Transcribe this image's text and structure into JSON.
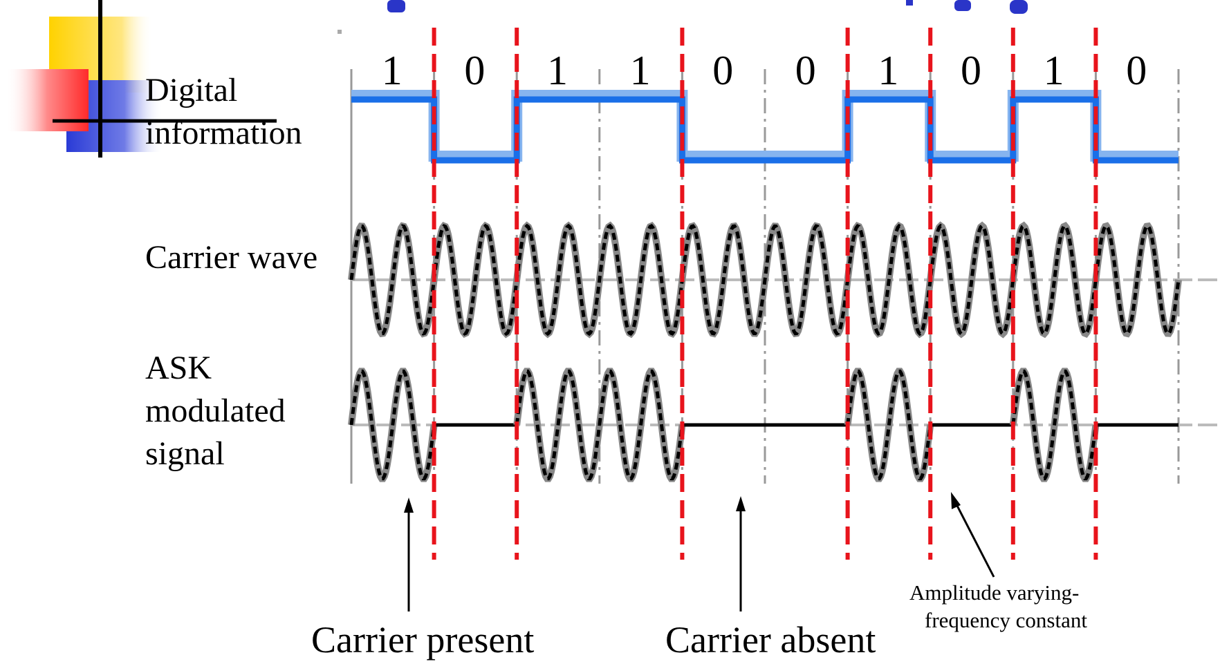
{
  "labels": {
    "digital": "Digital\ninformation",
    "carrier": "Carrier wave",
    "ask": "ASK\nmodulated\nsignal",
    "present": "Carrier present",
    "absent": "Carrier absent",
    "amplitude": "Amplitude varying-\nfrequency constant"
  },
  "bits": [
    "1",
    "0",
    "1",
    "1",
    "0",
    "0",
    "1",
    "0",
    "1",
    "0"
  ],
  "colors": {
    "digital_line": "#1a6fe8",
    "digital_shadow": "#86b4ef",
    "boundary": "#e8141c",
    "wave": "#000000",
    "wave_shadow": "#888888",
    "logo_yellow": "#ffd200",
    "logo_blue": "#2a3bd6",
    "logo_red": "#ff2a2a",
    "title_blue": "#2a35c8"
  }
}
